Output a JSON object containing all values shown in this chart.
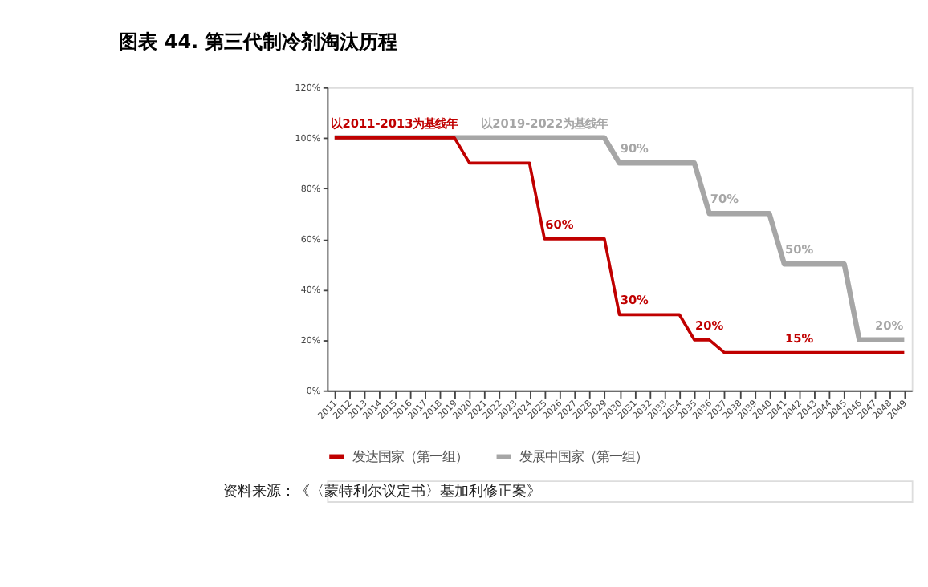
{
  "chart_data": {
    "type": "line",
    "title": "图表 44. 第三代制冷剂淘汰历程",
    "categories": [
      "2011",
      "2012",
      "2013",
      "2014",
      "2015",
      "2016",
      "2017",
      "2018",
      "2019",
      "2020",
      "2021",
      "2022",
      "2023",
      "2024",
      "2025",
      "2026",
      "2027",
      "2028",
      "2029",
      "2030",
      "2031",
      "2032",
      "2033",
      "2034",
      "2035",
      "2036",
      "2037",
      "2038",
      "2039",
      "2040",
      "2041",
      "2042",
      "2043",
      "2044",
      "2045",
      "2046",
      "2047",
      "2048",
      "2049"
    ],
    "series": [
      {
        "name": "发达国家（第一组）",
        "color": "#c00000",
        "values": [
          100,
          100,
          100,
          100,
          100,
          100,
          100,
          100,
          100,
          90,
          90,
          90,
          90,
          90,
          60,
          60,
          60,
          60,
          60,
          30,
          30,
          30,
          30,
          30,
          20,
          20,
          15,
          15,
          15,
          15,
          15,
          15,
          15,
          15,
          15,
          15,
          15,
          15,
          15
        ]
      },
      {
        "name": "发展中国家（第一组）",
        "color": "#a6a6a6",
        "values": [
          100,
          100,
          100,
          100,
          100,
          100,
          100,
          100,
          100,
          100,
          100,
          100,
          100,
          100,
          100,
          100,
          100,
          100,
          100,
          90,
          90,
          90,
          90,
          90,
          90,
          70,
          70,
          70,
          70,
          70,
          50,
          50,
          50,
          50,
          50,
          20,
          20,
          20,
          20
        ]
      }
    ],
    "ylim": [
      0,
      120
    ],
    "yticks": [
      {
        "value": 0,
        "label": "0%"
      },
      {
        "value": 20,
        "label": "20%"
      },
      {
        "value": 40,
        "label": "40%"
      },
      {
        "value": 60,
        "label": "60%"
      },
      {
        "value": 80,
        "label": "80%"
      },
      {
        "value": 100,
        "label": "100%"
      },
      {
        "value": 120,
        "label": "120%"
      }
    ],
    "grid": false,
    "legend": "bottom",
    "marker": "none",
    "line_style": "solid",
    "annotations": [
      {
        "text": "以2011-2013为基线年",
        "x": "2015",
        "y": 100
      },
      {
        "text": "以2019-2022为基线年",
        "x": "2025",
        "y": 100
      },
      {
        "text": "60%",
        "x": "2026",
        "y": 60
      },
      {
        "text": "30%",
        "x": "2031",
        "y": 30
      },
      {
        "text": "20%",
        "x": "2036",
        "y": 20
      },
      {
        "text": "15%",
        "x": "2042",
        "y": 15
      },
      {
        "text": "90%",
        "x": "2031",
        "y": 90
      },
      {
        "text": "70%",
        "x": "2037",
        "y": 70
      },
      {
        "text": "50%",
        "x": "2042",
        "y": 50
      },
      {
        "text": "20%",
        "x": "2048",
        "y": 20
      },
      "资料来源：《〈蒙特利尔议定书〉基加利修正案》"
    ]
  }
}
